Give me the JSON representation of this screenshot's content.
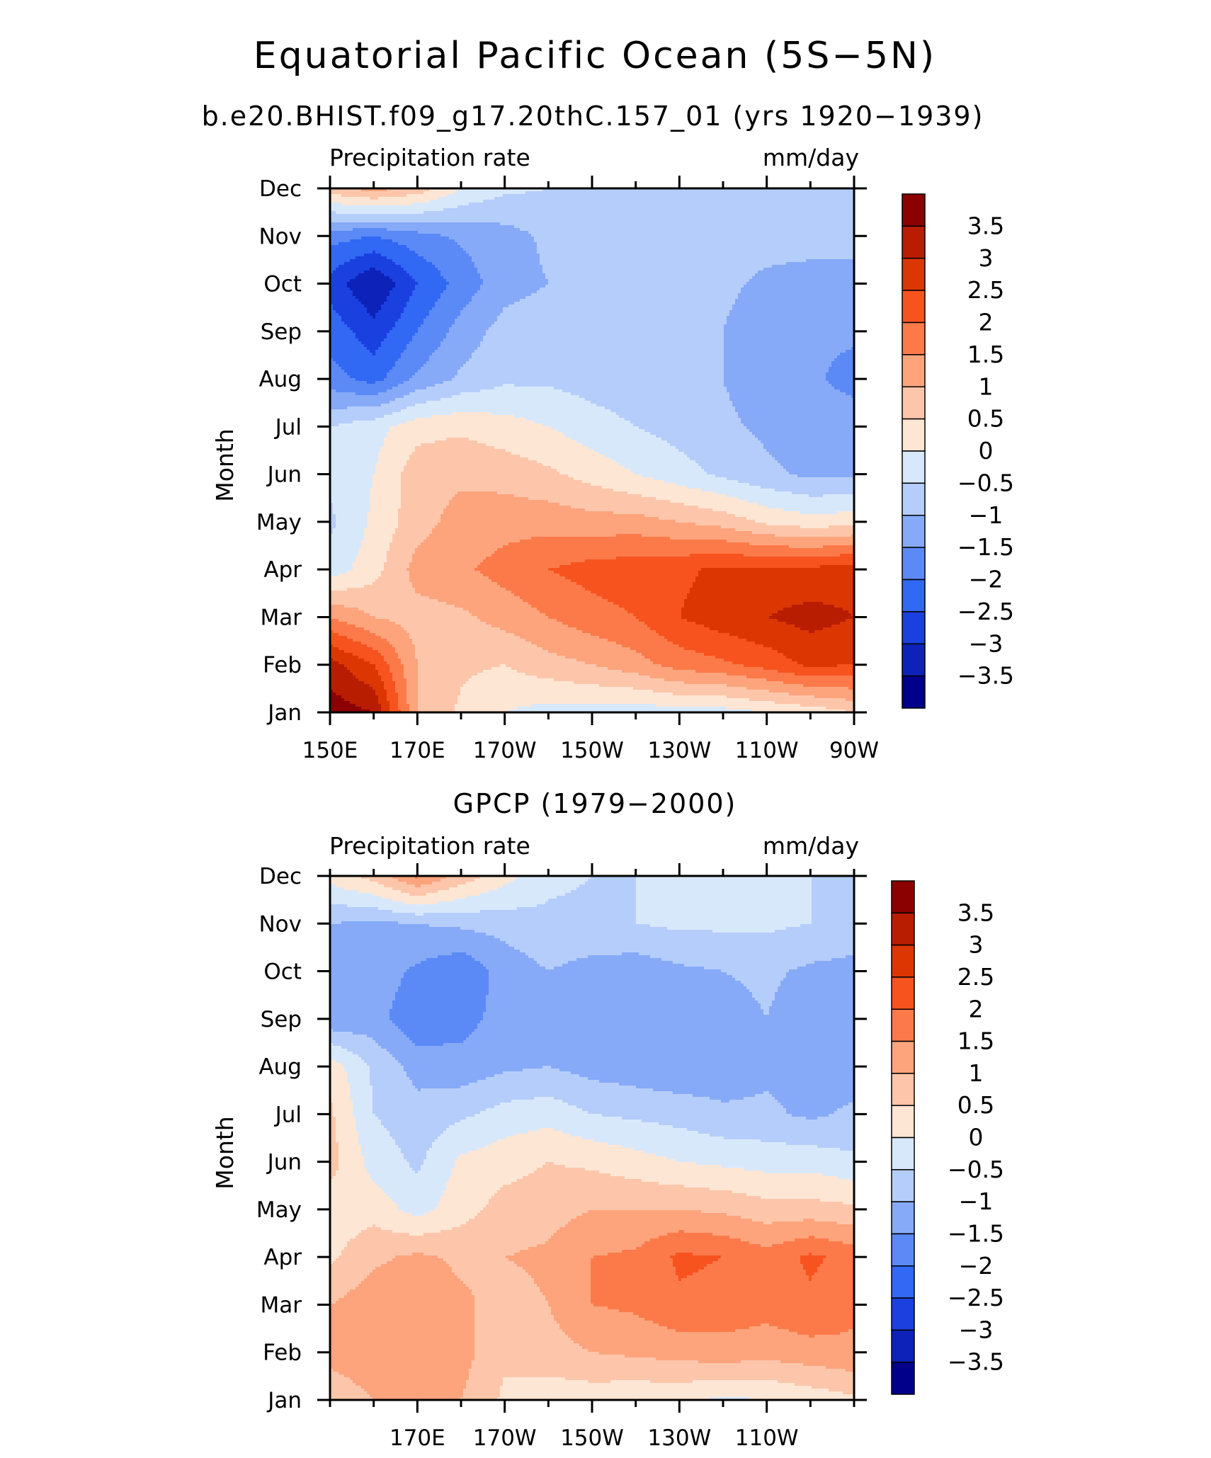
{
  "figure": {
    "title": "Equatorial Pacific Ocean (5S−5N)"
  },
  "colorbar": {
    "levels": [
      "3.5",
      "3",
      "2.5",
      "2",
      "1.5",
      "1",
      "0.5",
      "0",
      "−0.5",
      "−1",
      "−1.5",
      "−2",
      "−2.5",
      "−3",
      "−3.5"
    ],
    "colors": [
      "#8b0000",
      "#b81d02",
      "#dc3602",
      "#f7531f",
      "#fc7a49",
      "#fda47d",
      "#fdc6aa",
      "#fee6d4",
      "#d8e8fb",
      "#b5cdfa",
      "#86aaf8",
      "#5b8af7",
      "#3168f4",
      "#1a40e0",
      "#0d22b8",
      "#00008b"
    ]
  },
  "panels": [
    {
      "subtitle": "b.e20.BHIST.f09_g17.20thC.157_01 (yrs 1920−1939)",
      "left_label": "Precipitation rate",
      "right_label": "mm/day",
      "ylabel": "Month",
      "x_tick_labels": [
        "150E",
        "170E",
        "170W",
        "150W",
        "130W",
        "110W",
        "90W"
      ]
    },
    {
      "subtitle": "GPCP (1979−2000)",
      "left_label": "Precipitation rate",
      "right_label": "mm/day",
      "ylabel": "Month",
      "x_tick_labels": [
        "170E",
        "170W",
        "150W",
        "130W",
        "110W"
      ]
    }
  ],
  "chart_data": [
    {
      "type": "heatmap",
      "title": "Equatorial Pacific Ocean (5S−5N)",
      "subtitle": "b.e20.BHIST.f09_g17.20thC.157_01 (yrs 1920−1939)",
      "left_label": "Precipitation rate",
      "units": "mm/day",
      "xlabel": "",
      "ylabel": "Month",
      "x": [
        150,
        160,
        170,
        180,
        190,
        200,
        210,
        220,
        230,
        240,
        250,
        260,
        270
      ],
      "x_tick_labels": [
        "150E",
        "170E",
        "170W",
        "150W",
        "130W",
        "110W",
        "90W"
      ],
      "x_ticks": [
        150,
        170,
        190,
        210,
        230,
        250,
        270
      ],
      "y_tick_labels": [
        "Jan",
        "Feb",
        "Mar",
        "Apr",
        "May",
        "Jun",
        "Jul",
        "Aug",
        "Sep",
        "Oct",
        "Nov",
        "Dec"
      ],
      "xlim": [
        150,
        270
      ],
      "zlim": [
        -3.5,
        3.5
      ],
      "z": [
        [
          3.8,
          3.5,
          1.0,
          0.4,
          0.0,
          -0.2,
          -0.2,
          -0.3,
          -0.2,
          -0.2,
          0.0,
          0.2,
          0.5
        ],
        [
          3.2,
          2.5,
          1.0,
          0.6,
          0.5,
          0.8,
          1.0,
          1.3,
          1.7,
          1.9,
          2.2,
          2.6,
          2.5
        ],
        [
          1.5,
          1.0,
          0.8,
          0.9,
          1.2,
          1.5,
          1.8,
          2.0,
          2.5,
          2.8,
          3.0,
          3.2,
          3.0
        ],
        [
          -0.3,
          0.3,
          1.2,
          1.4,
          1.7,
          2.0,
          2.2,
          2.3,
          2.4,
          2.6,
          2.6,
          2.6,
          2.8
        ],
        [
          -0.6,
          0.1,
          0.8,
          1.2,
          1.3,
          1.3,
          1.2,
          1.2,
          1.0,
          0.8,
          0.4,
          0.2,
          0.3
        ],
        [
          -0.4,
          0.0,
          0.8,
          0.9,
          0.8,
          0.6,
          0.3,
          0.0,
          -0.3,
          -0.6,
          -0.9,
          -1.1,
          -1.1
        ],
        [
          -0.5,
          -0.2,
          0.3,
          0.4,
          0.2,
          0.0,
          -0.3,
          -0.5,
          -0.7,
          -0.9,
          -1.1,
          -1.2,
          -1.2
        ],
        [
          -1.8,
          -2.2,
          -1.4,
          -0.9,
          -0.6,
          -0.6,
          -0.7,
          -0.8,
          -0.9,
          -1.0,
          -1.3,
          -1.4,
          -1.7
        ],
        [
          -2.2,
          -2.8,
          -2.0,
          -1.3,
          -0.8,
          -0.7,
          -0.7,
          -0.8,
          -0.9,
          -1.0,
          -1.3,
          -1.4,
          -1.4
        ],
        [
          -2.7,
          -3.5,
          -2.5,
          -1.8,
          -1.2,
          -1.0,
          -0.8,
          -0.8,
          -0.8,
          -0.9,
          -1.1,
          -1.2,
          -1.2
        ],
        [
          -1.8,
          -2.0,
          -1.7,
          -1.4,
          -1.2,
          -0.9,
          -0.7,
          -0.7,
          -0.8,
          -0.8,
          -0.8,
          -0.8,
          -0.8
        ],
        [
          0.8,
          1.2,
          0.8,
          0.0,
          -0.4,
          -0.5,
          -0.6,
          -0.6,
          -0.6,
          -0.6,
          -0.6,
          -0.6,
          -0.6
        ]
      ]
    },
    {
      "type": "heatmap",
      "title": "",
      "subtitle": "GPCP (1979−2000)",
      "left_label": "Precipitation rate",
      "units": "mm/day",
      "xlabel": "",
      "ylabel": "Month",
      "x": [
        150,
        160,
        170,
        180,
        190,
        200,
        210,
        220,
        230,
        240,
        250,
        260,
        270
      ],
      "x_tick_labels": [
        "170E",
        "170W",
        "150W",
        "130W",
        "110W"
      ],
      "x_ticks": [
        170,
        190,
        210,
        230,
        250
      ],
      "y_tick_labels": [
        "Jan",
        "Feb",
        "Mar",
        "Apr",
        "May",
        "Jun",
        "Jul",
        "Aug",
        "Sep",
        "Oct",
        "Nov",
        "Dec"
      ],
      "xlim": [
        150,
        270
      ],
      "zlim": [
        -3.5,
        3.5
      ],
      "z": [
        [
          0.6,
          1.0,
          1.3,
          1.0,
          0.4,
          0.2,
          0.2,
          0.1,
          0.1,
          -0.1,
          0.0,
          0.2,
          0.4
        ],
        [
          1.2,
          1.4,
          1.3,
          1.2,
          0.6,
          0.8,
          1.0,
          1.1,
          1.2,
          1.3,
          1.2,
          1.3,
          1.4
        ],
        [
          1.0,
          1.3,
          1.4,
          1.1,
          0.8,
          1.0,
          1.5,
          1.6,
          1.9,
          1.8,
          1.7,
          1.9,
          1.6
        ],
        [
          0.4,
          0.9,
          1.1,
          0.9,
          1.0,
          1.1,
          1.5,
          1.6,
          2.1,
          2.0,
          1.7,
          2.1,
          1.8
        ],
        [
          0.2,
          0.3,
          -0.2,
          0.3,
          0.7,
          0.8,
          1.0,
          1.0,
          1.0,
          0.9,
          0.7,
          0.7,
          0.6
        ],
        [
          0.7,
          -0.2,
          -0.6,
          0.1,
          0.3,
          0.5,
          0.4,
          0.2,
          0.0,
          -0.1,
          -0.2,
          -0.2,
          -0.4
        ],
        [
          0.6,
          -0.5,
          -0.8,
          -0.6,
          -0.3,
          -0.2,
          -0.5,
          -0.6,
          -0.7,
          -0.9,
          -0.9,
          -1.1,
          -0.9
        ],
        [
          0.3,
          -0.6,
          -1.2,
          -1.3,
          -1.1,
          -1.0,
          -1.2,
          -1.3,
          -1.4,
          -1.3,
          -1.1,
          -1.2,
          -1.3
        ],
        [
          -1.4,
          -1.3,
          -1.9,
          -1.7,
          -1.3,
          -1.0,
          -1.3,
          -1.3,
          -1.3,
          -1.2,
          -1.0,
          -1.3,
          -1.3
        ],
        [
          -1.0,
          -1.2,
          -1.6,
          -1.9,
          -1.3,
          -1.0,
          -1.2,
          -1.3,
          -1.1,
          -1.0,
          -0.9,
          -1.1,
          -1.2
        ],
        [
          -1.0,
          -1.1,
          -1.0,
          -0.9,
          -0.8,
          -0.6,
          -0.6,
          -0.5,
          -0.4,
          -0.4,
          -0.4,
          -0.5,
          -0.6
        ],
        [
          0.2,
          0.7,
          1.6,
          0.8,
          0.2,
          -0.4,
          -0.5,
          -0.5,
          -0.5,
          -0.5,
          -0.5,
          -0.5,
          -0.5
        ]
      ]
    }
  ]
}
